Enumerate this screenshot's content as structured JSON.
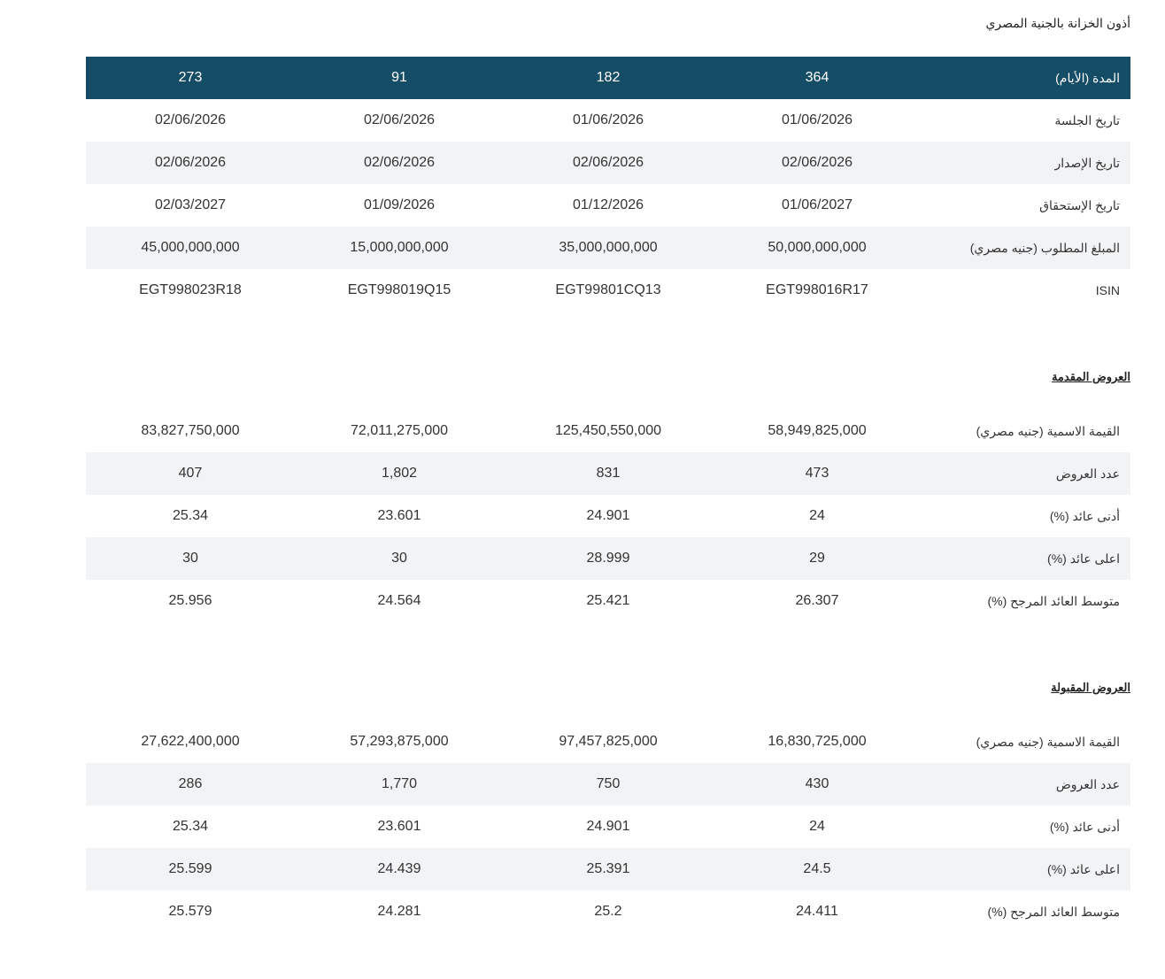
{
  "title": "أذون الخزانة بالجنية المصري",
  "table": {
    "header": [
      "المدة (الأيام)",
      "364",
      "182",
      "91",
      "273"
    ],
    "rows": [
      [
        "تاريخ الجلسة",
        "01/06/2026",
        "01/06/2026",
        "02/06/2026",
        "02/06/2026"
      ],
      [
        "تاريخ الإصدار",
        "02/06/2026",
        "02/06/2026",
        "02/06/2026",
        "02/06/2026"
      ],
      [
        "تاريخ الإستحقاق",
        "01/06/2027",
        "01/12/2026",
        "01/09/2026",
        "02/03/2027"
      ],
      [
        "المبلغ المطلوب (جنيه مصري)",
        "50,000,000,000",
        "35,000,000,000",
        "15,000,000,000",
        "45,000,000,000"
      ],
      [
        "ISIN",
        "EGT998016R17",
        "EGT99801CQ13",
        "EGT998019Q15",
        "EGT998023R18"
      ]
    ]
  },
  "sections": [
    {
      "heading": "العروض المقدمة",
      "rows": [
        [
          "القيمة الاسمية (جنيه مصري)",
          "58,949,825,000",
          "125,450,550,000",
          "72,011,275,000",
          "83,827,750,000"
        ],
        [
          "عدد العروض",
          "473",
          "831",
          "1,802",
          "407"
        ],
        [
          "أدنى عائد (%)",
          "24",
          "24.901",
          "23.601",
          "25.34"
        ],
        [
          "اعلى عائد (%)",
          "29",
          "28.999",
          "30",
          "30"
        ],
        [
          "متوسط العائد المرجح (%)",
          "26.307",
          "25.421",
          "24.564",
          "25.956"
        ]
      ]
    },
    {
      "heading": "العروض المقبولة",
      "rows": [
        [
          "القيمة الاسمية (جنيه مصري)",
          "16,830,725,000",
          "97,457,825,000",
          "57,293,875,000",
          "27,622,400,000"
        ],
        [
          "عدد العروض",
          "430",
          "750",
          "1,770",
          "286"
        ],
        [
          "أدنى عائد (%)",
          "24",
          "24.901",
          "23.601",
          "25.34"
        ],
        [
          "اعلى عائد (%)",
          "24.5",
          "25.391",
          "24.439",
          "25.599"
        ],
        [
          "متوسط العائد المرجح (%)",
          "24.411",
          "25.2",
          "24.281",
          "25.579"
        ]
      ]
    }
  ]
}
